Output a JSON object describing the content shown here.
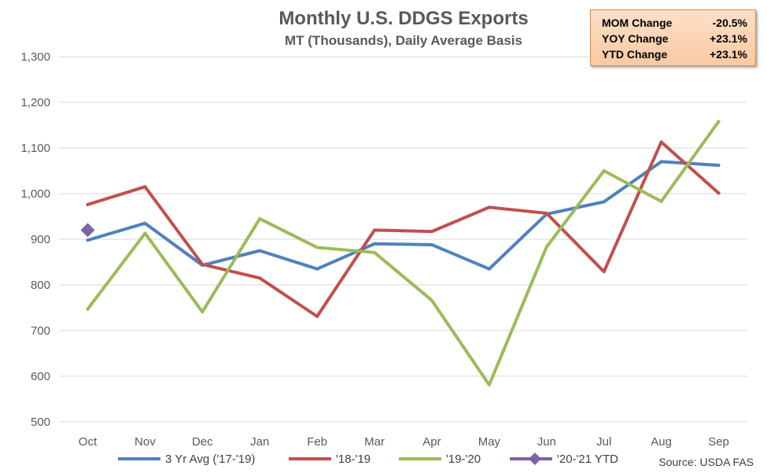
{
  "chart_data": {
    "type": "line",
    "title": "Monthly U.S. DDGS Exports",
    "subtitle": "MT (Thousands), Daily Average Basis",
    "categories": [
      "Oct",
      "Nov",
      "Dec",
      "Jan",
      "Feb",
      "Mar",
      "Apr",
      "May",
      "Jun",
      "Jul",
      "Aug",
      "Sep"
    ],
    "ylim": [
      500,
      1300
    ],
    "yticks": [
      500,
      600,
      700,
      800,
      900,
      1000,
      1100,
      1200,
      1300
    ],
    "ytick_labels": [
      "500",
      "600",
      "700",
      "800",
      "900",
      "1,000",
      "1,100",
      "1,200",
      "1,300"
    ],
    "grid": true,
    "series": [
      {
        "name": "3 Yr Avg ('17-'19)",
        "color": "#4f81bd",
        "marker": "none",
        "values": [
          898,
          935,
          843,
          875,
          835,
          890,
          888,
          835,
          955,
          982,
          1070,
          1062
        ]
      },
      {
        "name": "'18-'19",
        "color": "#c0504d",
        "marker": "none",
        "values": [
          976,
          1015,
          845,
          815,
          731,
          920,
          917,
          970,
          957,
          829,
          1113,
          1001
        ]
      },
      {
        "name": "'19-'20",
        "color": "#9bbb59",
        "marker": "none",
        "values": [
          747,
          913,
          741,
          945,
          882,
          871,
          766,
          581,
          883,
          1050,
          983,
          1158
        ]
      },
      {
        "name": "'20-'21 YTD",
        "color": "#8064a2",
        "marker": "diamond",
        "values": [
          920,
          null,
          null,
          null,
          null,
          null,
          null,
          null,
          null,
          null,
          null,
          null
        ]
      }
    ],
    "legend_position": "bottom",
    "source": "Source: USDA FAS"
  },
  "stats": [
    {
      "label": "MOM Change",
      "value": "-20.5%"
    },
    {
      "label": "YOY Change",
      "value": "+23.1%"
    },
    {
      "label": "YTD Change",
      "value": "+23.1%"
    }
  ],
  "colors": {
    "box_fill": "#fbd3b1",
    "box_border": "#e98a3c"
  }
}
